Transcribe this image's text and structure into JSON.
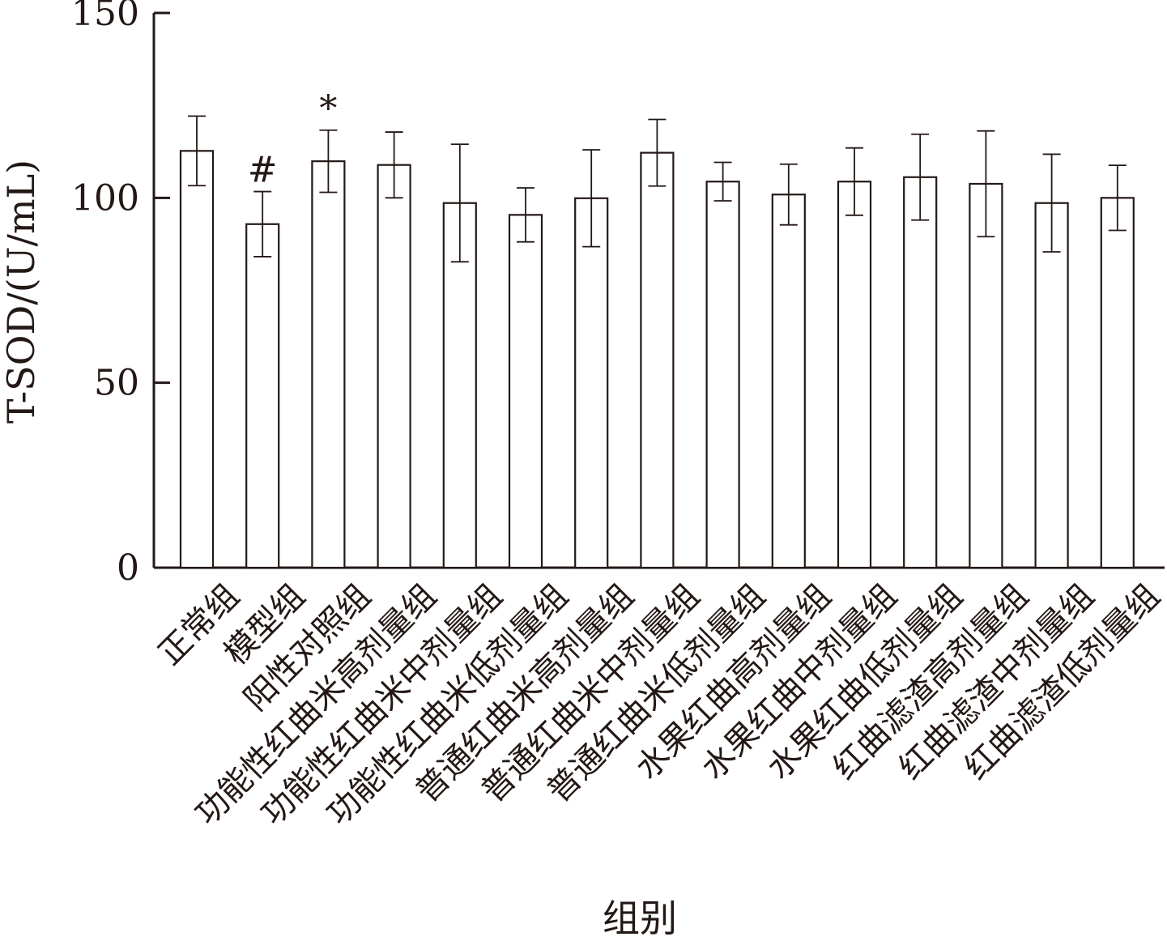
{
  "chart_data": {
    "type": "bar",
    "title": "",
    "ylabel": "T-SOD/(U/mL)",
    "xlabel": "组别",
    "ylim": [
      0,
      150
    ],
    "yticks": [
      0,
      50,
      100,
      150
    ],
    "grid": false,
    "legend": "none",
    "colors": {
      "axis": "#231815",
      "bar_fill": "#ffffff",
      "bar_edge": "#231815"
    },
    "categories": [
      "正常组",
      "模型组",
      "阳性对照组",
      "功能性红曲米高剂量组",
      "功能性红曲米中剂量组",
      "功能性红曲米低剂量组",
      "普通红曲米高剂量组",
      "普通红曲米中剂量组",
      "普通红曲米低剂量组",
      "水果红曲高剂量组",
      "水果红曲中剂量组",
      "水果红曲低剂量组",
      "红曲滤渣高剂量组",
      "红曲滤渣中剂量组",
      "红曲滤渣低剂量组"
    ],
    "values": [
      112.7,
      92.9,
      109.9,
      108.9,
      98.6,
      95.4,
      99.9,
      112.2,
      104.4,
      100.9,
      104.4,
      105.6,
      103.8,
      98.6,
      100.0
    ],
    "errors": [
      9.4,
      8.8,
      8.4,
      8.9,
      15.9,
      7.3,
      13.1,
      9.0,
      5.2,
      8.2,
      9.1,
      11.6,
      14.3,
      13.2,
      8.8
    ],
    "annotations": [
      "",
      "#",
      "*",
      "",
      "",
      "",
      "",
      "",
      "",
      "",
      "",
      "",
      "",
      "",
      ""
    ]
  }
}
